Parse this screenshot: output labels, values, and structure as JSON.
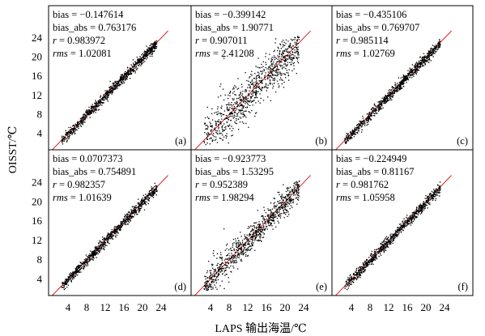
{
  "figure": {
    "xlabel": "LAPS 输出海温/℃",
    "ylabel": "OISST/℃"
  },
  "colors": {
    "points": "#000000",
    "reference_line": "#e02020",
    "frame": "#000000"
  },
  "chart_data": [
    {
      "type": "scatter",
      "panel": "(a)",
      "stats": {
        "bias": "bias = −0.147614",
        "bias_abs": "bias_abs = 0.763176",
        "r": "0.983972",
        "rms": "1.02081"
      },
      "xlim": [
        0,
        25
      ],
      "ylim": [
        1.5,
        25
      ],
      "reference_line": "y = x",
      "pattern": "tight",
      "approx_points": 1500
    },
    {
      "type": "scatter",
      "panel": "(b)",
      "stats": {
        "bias": "bias = −0.399142",
        "bias_abs": "bias_abs = 1.90771",
        "r": "0.907011",
        "rms": "2.41208"
      },
      "xlim": [
        0,
        25
      ],
      "ylim": [
        1.5,
        25
      ],
      "reference_line": "y = x",
      "pattern": "wide",
      "approx_points": 1500
    },
    {
      "type": "scatter",
      "panel": "(c)",
      "stats": {
        "bias": "bias = −0.435106",
        "bias_abs": "bias_abs = 0.769707",
        "r": "0.985114",
        "rms": "1.02769"
      },
      "xlim": [
        0,
        25
      ],
      "ylim": [
        1.5,
        25
      ],
      "reference_line": "y = x",
      "pattern": "tight",
      "approx_points": 1500
    },
    {
      "type": "scatter",
      "panel": "(d)",
      "stats": {
        "bias": "bias = 0.0707373",
        "bias_abs": "bias_abs = 0.754891",
        "r": "0.982357",
        "rms": "1.01639"
      },
      "xlim": [
        0,
        25
      ],
      "ylim": [
        1.5,
        25
      ],
      "reference_line": "y = x",
      "pattern": "tight",
      "approx_points": 1500
    },
    {
      "type": "scatter",
      "panel": "(e)",
      "stats": {
        "bias": "bias = −0.923773",
        "bias_abs": "bias_abs = 1.53295",
        "r": "0.952389",
        "rms": "1.98294"
      },
      "xlim": [
        0,
        25
      ],
      "ylim": [
        1.5,
        25
      ],
      "reference_line": "y = x",
      "pattern": "medium",
      "approx_points": 1500
    },
    {
      "type": "scatter",
      "panel": "(f)",
      "stats": {
        "bias": "bias = −0.224949",
        "bias_abs": "bias_abs = 0.81167",
        "r": "0.981762",
        "rms": "1.05958"
      },
      "xlim": [
        0,
        25
      ],
      "ylim": [
        1.5,
        25
      ],
      "reference_line": "y = x",
      "pattern": "tight",
      "approx_points": 1500
    }
  ],
  "ticks": {
    "x": [
      "4",
      "8",
      "12",
      "16",
      "20",
      "24"
    ],
    "y": [
      "4",
      "8",
      "12",
      "16",
      "20",
      "24"
    ]
  }
}
